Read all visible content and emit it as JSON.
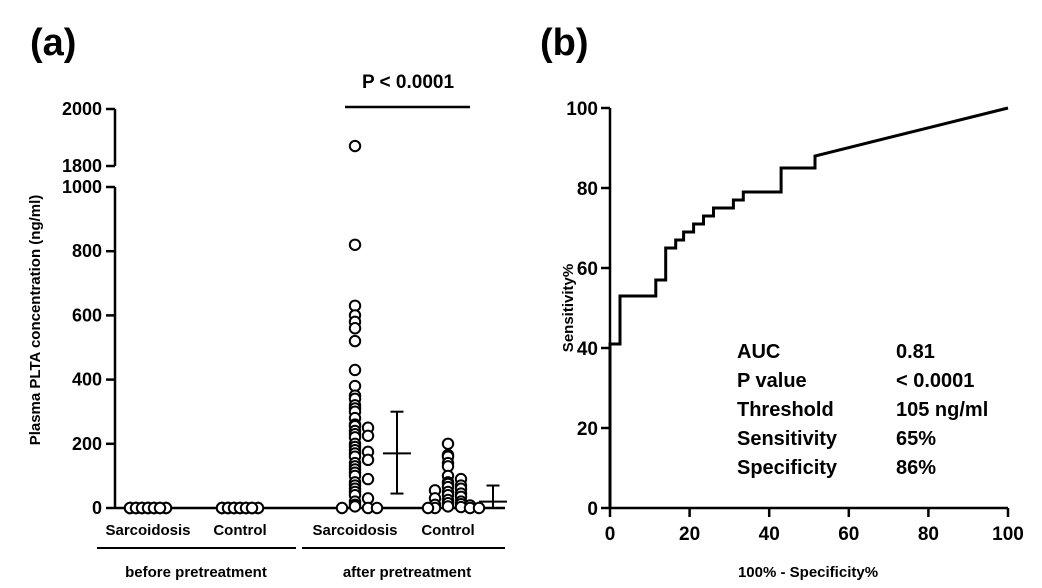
{
  "panel_a": {
    "label": "(a)",
    "ylabel": "Plasma PLTA concentration (ng/ml)",
    "p_value": "P < 0.0001",
    "group_labels": [
      "before pretreatment",
      "after pretreatment"
    ]
  },
  "panel_b": {
    "label": "(b)",
    "stats": [
      {
        "key": "AUC",
        "value": "0.81"
      },
      {
        "key": "P value",
        "value": "< 0.0001"
      },
      {
        "key": "Threshold",
        "value": "105 ng/ml"
      },
      {
        "key": "Sensitivity",
        "value": "65%"
      },
      {
        "key": "Specificity",
        "value": "86%"
      }
    ]
  },
  "chart_data": [
    {
      "type": "scatter",
      "ylabel": "Plasma PLTA concentration (ng/ml)",
      "categories": [
        "Sarcoidosis",
        "Control",
        "Sarcoidosis",
        "Control"
      ],
      "groups": [
        "before pretreatment",
        "before pretreatment",
        "after pretreatment",
        "after pretreatment"
      ],
      "ylim_lower": [
        0,
        1000
      ],
      "ylim_upper": [
        1800,
        2000
      ],
      "yticks": [
        0,
        200,
        400,
        600,
        800,
        1000,
        1800,
        2000
      ],
      "axis_break": [
        1000,
        1800
      ],
      "series": [
        {
          "category": "Sarcoidosis",
          "group": "before pretreatment",
          "values": [
            0,
            0,
            0,
            0,
            0,
            0,
            0,
            0,
            0,
            0,
            0,
            0,
            0,
            0,
            0,
            0,
            0,
            0,
            0,
            0
          ]
        },
        {
          "category": "Control",
          "group": "before pretreatment",
          "values": [
            0,
            0,
            0,
            0,
            0,
            0,
            0,
            0,
            0,
            0,
            0,
            0,
            0,
            0,
            0,
            0,
            0,
            0,
            0,
            0
          ]
        },
        {
          "category": "Sarcoidosis",
          "group": "after pretreatment",
          "values": [
            1870,
            820,
            630,
            600,
            580,
            560,
            520,
            430,
            380,
            350,
            340,
            320,
            310,
            300,
            280,
            260,
            255,
            250,
            240,
            230,
            225,
            220,
            200,
            190,
            180,
            175,
            170,
            160,
            150,
            140,
            130,
            120,
            110,
            100,
            90,
            80,
            70,
            60,
            50,
            40,
            30,
            20,
            10,
            5,
            0,
            0,
            0
          ],
          "mean": 170,
          "error_low": 45,
          "error_high": 300
        },
        {
          "category": "Control",
          "group": "after pretreatment",
          "values": [
            200,
            165,
            160,
            140,
            130,
            100,
            90,
            80,
            75,
            70,
            65,
            60,
            55,
            50,
            45,
            40,
            35,
            30,
            25,
            20,
            15,
            12,
            10,
            8,
            5,
            3,
            0,
            0,
            0,
            0
          ],
          "mean": 20,
          "error_low": 0,
          "error_high": 70
        }
      ],
      "annotation": "P < 0.0001"
    },
    {
      "type": "line",
      "xlabel": "100% - Specificity%",
      "ylabel": "Sensitivity%",
      "xlim": [
        0,
        100
      ],
      "ylim": [
        0,
        100
      ],
      "xticks": [
        0,
        20,
        40,
        60,
        80,
        100
      ],
      "yticks": [
        0,
        20,
        40,
        60,
        80,
        100
      ],
      "x": [
        0,
        0,
        2.5,
        2.5,
        11.5,
        11.5,
        14,
        14,
        16.5,
        16.5,
        18.5,
        18.5,
        21,
        21,
        23.5,
        23.5,
        26,
        26,
        31,
        31,
        33.5,
        33.5,
        36,
        36,
        43,
        43,
        51.5,
        51.5,
        100
      ],
      "y": [
        0,
        41,
        41,
        53,
        53,
        57,
        57,
        65,
        65,
        67,
        67,
        69,
        69,
        71,
        71,
        73,
        73,
        75,
        75,
        77,
        77,
        79,
        79,
        79,
        79,
        85,
        85,
        88,
        100
      ]
    }
  ]
}
